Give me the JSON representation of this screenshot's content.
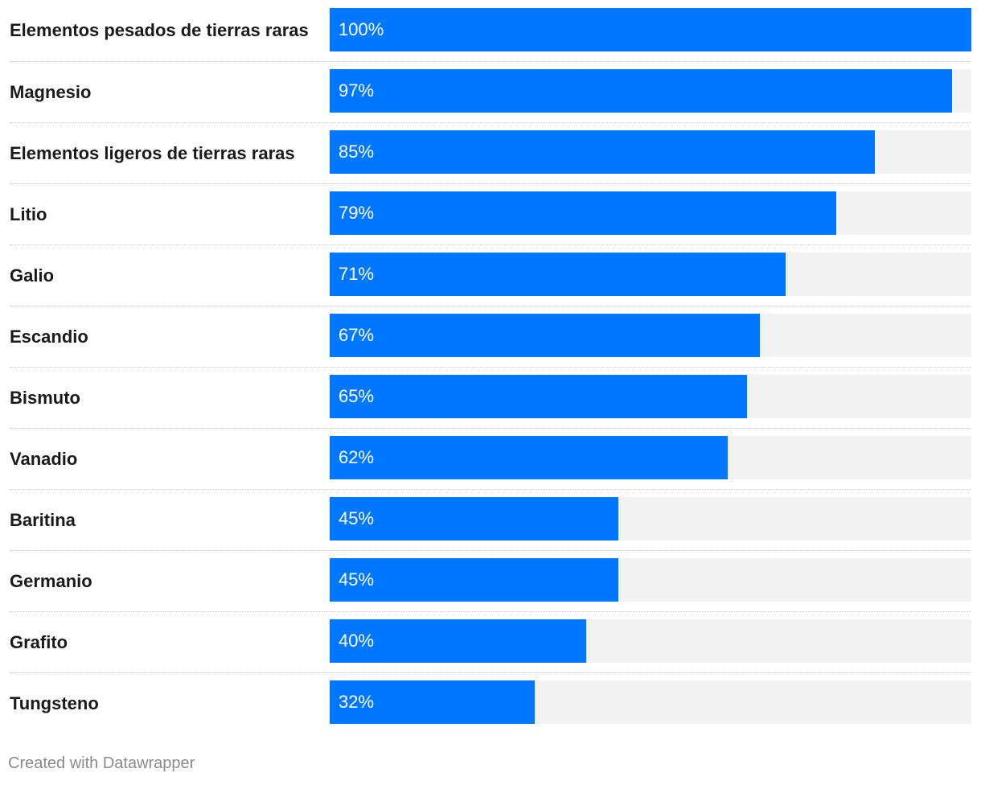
{
  "chart_data": {
    "type": "bar",
    "orientation": "horizontal",
    "categories": [
      "Elementos pesados de tierras raras",
      "Magnesio",
      "Elementos ligeros de tierras raras",
      "Litio",
      "Galio",
      "Escandio",
      "Bismuto",
      "Vanadio",
      "Baritina",
      "Germanio",
      "Grafito",
      "Tungsteno"
    ],
    "values": [
      100,
      97,
      85,
      79,
      71,
      67,
      65,
      62,
      45,
      45,
      40,
      32
    ],
    "value_labels": [
      "100%",
      "97%",
      "85%",
      "79%",
      "71%",
      "67%",
      "65%",
      "62%",
      "45%",
      "45%",
      "40%",
      "32%"
    ],
    "xlim": [
      0,
      100
    ],
    "unit": "%",
    "bar_color": "#0077ff",
    "track_color": "#f2f2f2"
  },
  "footer": {
    "credit": "Created with Datawrapper"
  }
}
